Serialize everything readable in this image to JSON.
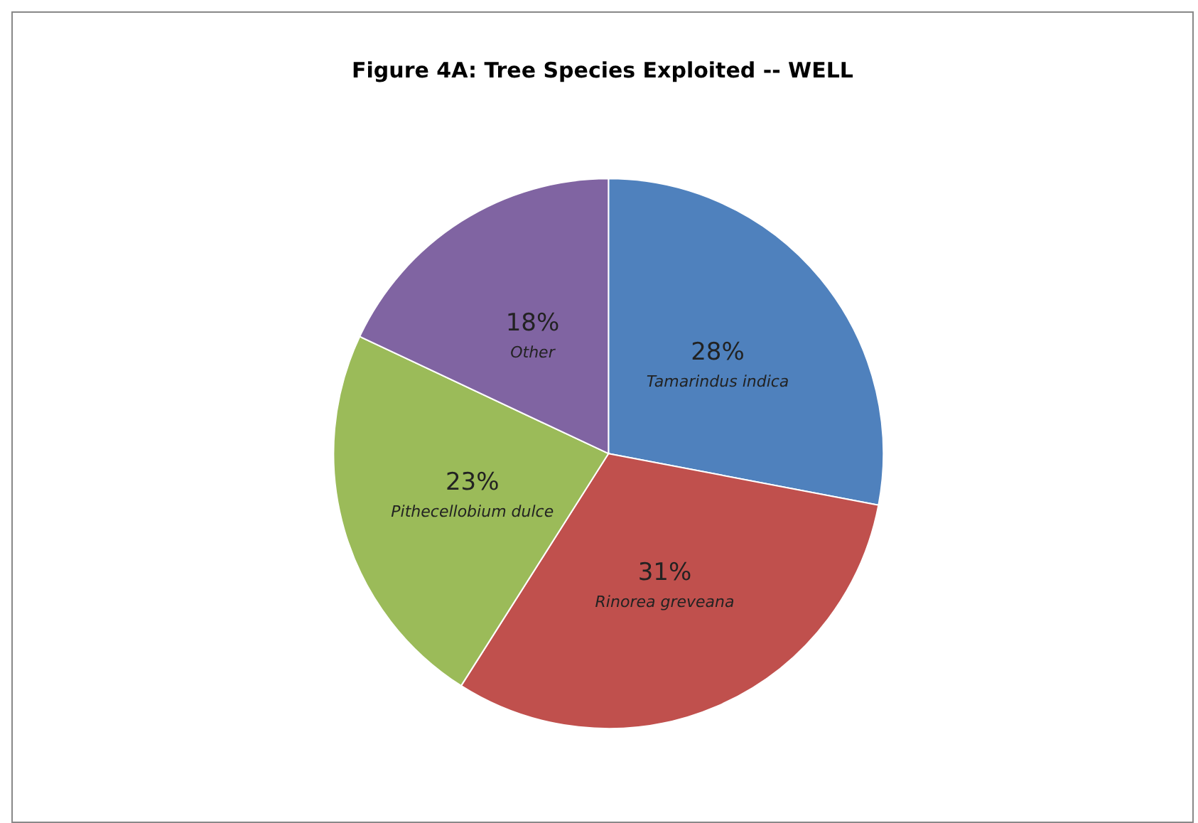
{
  "chart_data": {
    "type": "pie",
    "title": "Figure 4A: Tree Species Exploited -- WELL",
    "categories": [
      "Tamarindus indica",
      "Rinorea greveana",
      "Pithecellobium dulce",
      "Other"
    ],
    "values": [
      28,
      31,
      23,
      18
    ],
    "value_labels": [
      "28%",
      "31%",
      "23%",
      "18%"
    ],
    "colors": [
      "#4f81bd",
      "#c0504d",
      "#9bbb59",
      "#8064a2"
    ],
    "legend": false
  }
}
